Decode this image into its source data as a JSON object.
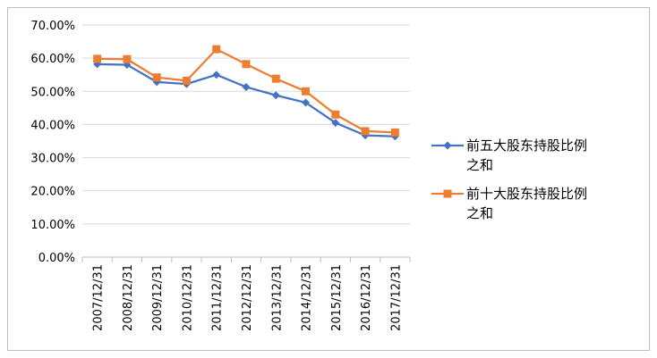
{
  "chart_data": {
    "type": "line",
    "categories": [
      "2007/12/31",
      "2008/12/31",
      "2009/12/31",
      "2010/12/31",
      "2011/12/31",
      "2012/12/31",
      "2013/12/31",
      "2014/12/31",
      "2015/12/31",
      "2016/12/31",
      "2017/12/31"
    ],
    "ylim": [
      0,
      0.7
    ],
    "yticks": [
      "0.00%",
      "10.00%",
      "20.00%",
      "30.00%",
      "40.00%",
      "50.00%",
      "60.00%",
      "70.00%"
    ],
    "grid": true,
    "legend_position": "right",
    "series": [
      {
        "name_lines": [
          "前五大股东持股比例",
          "之和"
        ],
        "color": "#4472C4",
        "marker": "diamond",
        "values": [
          0.582,
          0.58,
          0.528,
          0.522,
          0.55,
          0.513,
          0.488,
          0.466,
          0.405,
          0.367,
          0.364
        ]
      },
      {
        "name_lines": [
          "前十大股东持股比例",
          "之和"
        ],
        "color": "#ED7D31",
        "marker": "square",
        "values": [
          0.598,
          0.597,
          0.542,
          0.532,
          0.627,
          0.582,
          0.538,
          0.5,
          0.43,
          0.38,
          0.376
        ]
      }
    ]
  }
}
